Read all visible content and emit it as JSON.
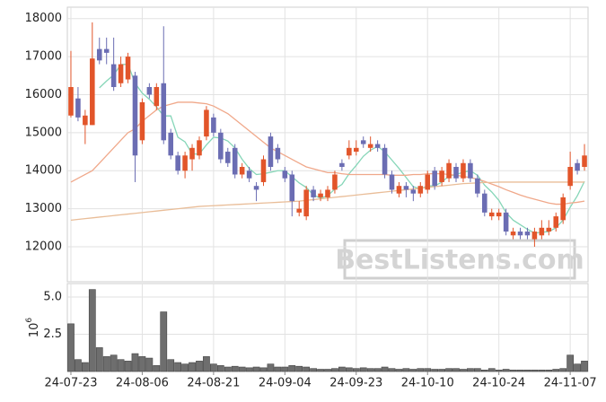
{
  "chart_data": [
    {
      "type": "candlestick",
      "ylim": [
        11080,
        18300
      ],
      "yticks": [
        12000,
        13000,
        14000,
        15000,
        16000,
        17000,
        18000
      ],
      "grid": true,
      "up_color": "#e2552a",
      "down_color": "#6b6db3",
      "open": [
        15450,
        15900,
        15200,
        15200,
        17200,
        17200,
        16800,
        16300,
        16400,
        16500,
        14800,
        16200,
        15700,
        16300,
        15000,
        14400,
        14000,
        14300,
        14400,
        14900,
        15400,
        15000,
        14500,
        14600,
        13900,
        14000,
        13600,
        13700,
        14900,
        14600,
        14000,
        13900,
        12900,
        12800,
        13500,
        13300,
        13300,
        13500,
        14200,
        14400,
        14500,
        14800,
        14600,
        14700,
        14600,
        13900,
        13400,
        13600,
        13500,
        13400,
        13500,
        14000,
        13700,
        13800,
        14100,
        13800,
        14200,
        13800,
        13400,
        12800,
        12800,
        12900,
        12300,
        12400,
        12400,
        12200,
        12300,
        12400,
        12500,
        12700,
        13600,
        14200,
        14100
      ],
      "high": [
        17150,
        16200,
        15600,
        17900,
        17500,
        17500,
        17500,
        17000,
        17100,
        16600,
        15900,
        16300,
        16300,
        17800,
        15100,
        14500,
        14500,
        14700,
        14900,
        15700,
        15500,
        15100,
        14600,
        14700,
        14200,
        14100,
        13700,
        14400,
        15000,
        14700,
        14100,
        14000,
        13200,
        13600,
        13600,
        13500,
        13600,
        14000,
        14300,
        14800,
        14800,
        14900,
        14900,
        14800,
        14700,
        14000,
        13700,
        13700,
        13600,
        13700,
        14000,
        14100,
        14100,
        14300,
        14200,
        14300,
        14300,
        13900,
        13500,
        13000,
        13000,
        13000,
        12500,
        12500,
        12500,
        12500,
        12700,
        12700,
        12900,
        13400,
        14500,
        14300,
        14700
      ],
      "low": [
        15400,
        15300,
        14700,
        15200,
        16800,
        16800,
        16100,
        16200,
        16300,
        13700,
        14700,
        15900,
        15600,
        14700,
        14300,
        13900,
        13800,
        14000,
        14300,
        14800,
        14900,
        14200,
        14100,
        13800,
        13800,
        13700,
        13200,
        13600,
        14000,
        14200,
        13700,
        12800,
        12800,
        12700,
        13200,
        13200,
        13200,
        13400,
        14000,
        14300,
        14400,
        14600,
        14500,
        14500,
        13800,
        13400,
        13300,
        13300,
        13200,
        13300,
        13400,
        13500,
        13600,
        13700,
        13700,
        13700,
        13700,
        13300,
        12800,
        12700,
        12700,
        12300,
        12200,
        12200,
        12200,
        12000,
        12200,
        12300,
        12400,
        12600,
        13500,
        13900,
        14000
      ],
      "close": [
        16200,
        15400,
        15450,
        16950,
        16900,
        17100,
        16200,
        16800,
        17000,
        14400,
        15800,
        16000,
        16200,
        14800,
        14400,
        14000,
        14400,
        14600,
        14800,
        15600,
        15000,
        14300,
        14200,
        13900,
        14100,
        13800,
        13500,
        14300,
        14100,
        14300,
        13800,
        13200,
        13000,
        13500,
        13300,
        13400,
        13500,
        13900,
        14100,
        14600,
        14600,
        14700,
        14700,
        14600,
        13900,
        13500,
        13600,
        13500,
        13400,
        13600,
        13900,
        13600,
        14000,
        14200,
        13800,
        14200,
        13800,
        13400,
        12900,
        12900,
        12900,
        12400,
        12400,
        12300,
        12300,
        12400,
        12500,
        12500,
        12800,
        13300,
        14100,
        14000,
        14400
      ],
      "series": [
        {
          "color": "#86d6b8",
          "values": [
            null,
            null,
            null,
            null,
            16180,
            16360,
            16520,
            16790,
            16800,
            16300,
            16040,
            15880,
            15680,
            15440,
            15440,
            14880,
            14760,
            14440,
            14440,
            14680,
            14880,
            14860,
            14780,
            14600,
            14300,
            14060,
            13900,
            13920,
            13960,
            14000,
            14000,
            13840,
            13680,
            13560,
            13360,
            13280,
            13340,
            13520,
            13640,
            13920,
            14140,
            14380,
            14540,
            14640,
            14500,
            14280,
            14060,
            13820,
            13580,
            13520,
            13600,
            13600,
            13700,
            13860,
            13900,
            13960,
            14000,
            13880,
            13620,
            13440,
            13220,
            12900,
            12700,
            12580,
            12460,
            12360,
            12380,
            12400,
            12500,
            12700,
            13040,
            13340,
            13720
          ]
        },
        {
          "color": "#f0a88a",
          "values": [
            13700,
            13800,
            13900,
            14000,
            14200,
            14400,
            14600,
            14800,
            15000,
            15100,
            15300,
            15450,
            15600,
            15700,
            15750,
            15800,
            15800,
            15800,
            15780,
            15760,
            15700,
            15600,
            15500,
            15350,
            15200,
            15050,
            14900,
            14750,
            14600,
            14500,
            14400,
            14300,
            14200,
            14100,
            14050,
            14000,
            13950,
            13950,
            13920,
            13900,
            13900,
            13900,
            13900,
            13900,
            13900,
            13880,
            13880,
            13880,
            13900,
            13900,
            13920,
            13920,
            13920,
            13900,
            13880,
            13850,
            13820,
            13780,
            13720,
            13650,
            13580,
            13500,
            13430,
            13360,
            13300,
            13250,
            13200,
            13150,
            13120,
            13120,
            13150,
            13170,
            13200
          ]
        },
        {
          "color": "#e9bd98",
          "values": [
            12700,
            12720,
            12740,
            12760,
            12780,
            12800,
            12820,
            12840,
            12860,
            12880,
            12900,
            12920,
            12940,
            12960,
            12980,
            13000,
            13020,
            13040,
            13060,
            13070,
            13080,
            13090,
            13100,
            13110,
            13120,
            13130,
            13140,
            13150,
            13160,
            13170,
            13180,
            13190,
            13200,
            13220,
            13240,
            13260,
            13280,
            13300,
            13320,
            13340,
            13360,
            13380,
            13400,
            13420,
            13440,
            13460,
            13480,
            13500,
            13520,
            13540,
            13560,
            13580,
            13600,
            13620,
            13640,
            13660,
            13670,
            13680,
            13690,
            13690,
            13700,
            13700,
            13700,
            13700,
            13700,
            13700,
            13700,
            13700,
            13700,
            13700,
            13700,
            13700,
            13700
          ]
        }
      ]
    },
    {
      "type": "bar",
      "ylim": [
        0,
        5.9
      ],
      "yticks": [
        2.5,
        {
          "value": 5,
          "label": "5.0"
        }
      ],
      "grid": true,
      "color": "#6e6e6e",
      "ylabel": {
        "base": "10",
        "exponent": "6"
      },
      "categories": [
        "24-07-23",
        null,
        null,
        null,
        null,
        null,
        null,
        null,
        null,
        null,
        "24-08-06",
        null,
        null,
        null,
        null,
        null,
        null,
        null,
        null,
        null,
        "24-08-21",
        null,
        null,
        null,
        null,
        null,
        null,
        null,
        null,
        null,
        "24-09-04",
        null,
        null,
        null,
        null,
        null,
        null,
        null,
        null,
        null,
        "24-09-23",
        null,
        null,
        null,
        null,
        null,
        null,
        null,
        null,
        null,
        "24-10-10",
        null,
        null,
        null,
        null,
        null,
        null,
        null,
        null,
        null,
        "24-10-24",
        null,
        null,
        null,
        null,
        null,
        null,
        null,
        null,
        null,
        "24-11-07",
        null,
        null
      ],
      "values": [
        3.2,
        0.8,
        0.6,
        5.5,
        1.6,
        1.0,
        1.1,
        0.8,
        0.7,
        1.2,
        1.0,
        0.9,
        0.4,
        4.0,
        0.8,
        0.6,
        0.5,
        0.6,
        0.7,
        1.0,
        0.5,
        0.4,
        0.3,
        0.35,
        0.3,
        0.25,
        0.3,
        0.25,
        0.5,
        0.3,
        0.3,
        0.4,
        0.35,
        0.3,
        0.2,
        0.15,
        0.15,
        0.2,
        0.3,
        0.25,
        0.2,
        0.25,
        0.2,
        0.2,
        0.3,
        0.2,
        0.15,
        0.2,
        0.15,
        0.2,
        0.2,
        0.15,
        0.15,
        0.2,
        0.2,
        0.15,
        0.2,
        0.2,
        0.1,
        0.2,
        0.1,
        0.15,
        0.1,
        0.1,
        0.1,
        0.1,
        0.1,
        0.1,
        0.15,
        0.2,
        1.1,
        0.5,
        0.7
      ]
    }
  ],
  "watermark": "BestListens.com"
}
